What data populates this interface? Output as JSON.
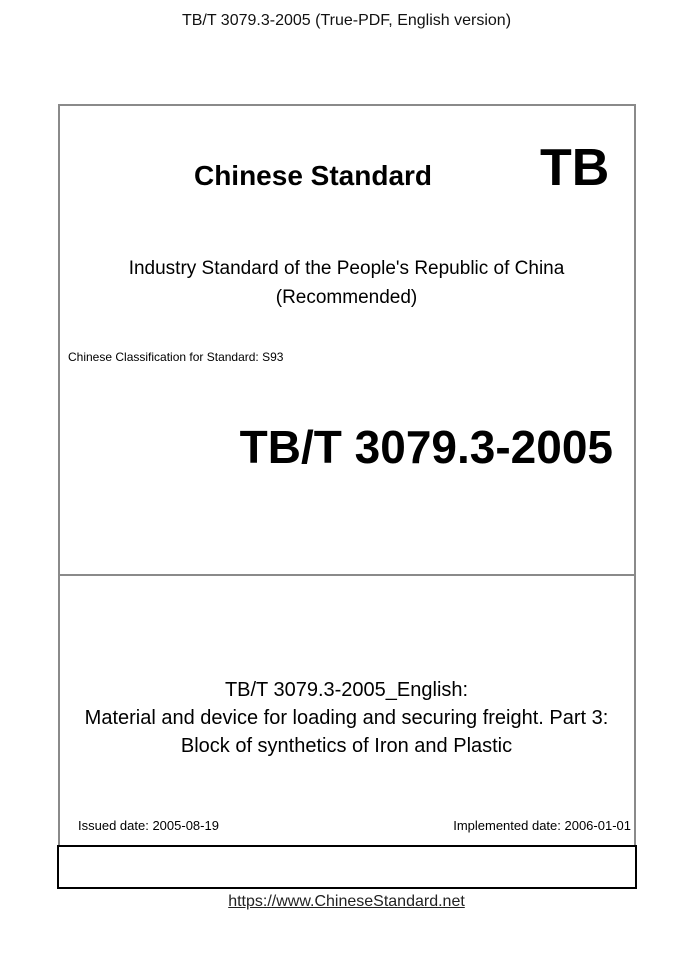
{
  "header": "TB/T 3079.3-2005 (True-PDF, English version)",
  "cover": {
    "title": "Chinese Standard",
    "badge": "TB",
    "industry_line1": "Industry Standard of the People's Republic of China",
    "industry_line2": "(Recommended)",
    "classification": "Chinese Classification for Standard: S93",
    "code": "TB/T 3079.3-2005",
    "doc_title_line1": "TB/T 3079.3-2005_English:",
    "doc_title_line2": "Material and device for loading and securing freight. Part 3:",
    "doc_title_line3": "Block of synthetics of Iron and Plastic",
    "issued": "Issued date: 2005-08-19",
    "implemented": "Implemented date: 2006-01-01"
  },
  "footer": {
    "link": "https://www.ChineseStandard.net"
  }
}
